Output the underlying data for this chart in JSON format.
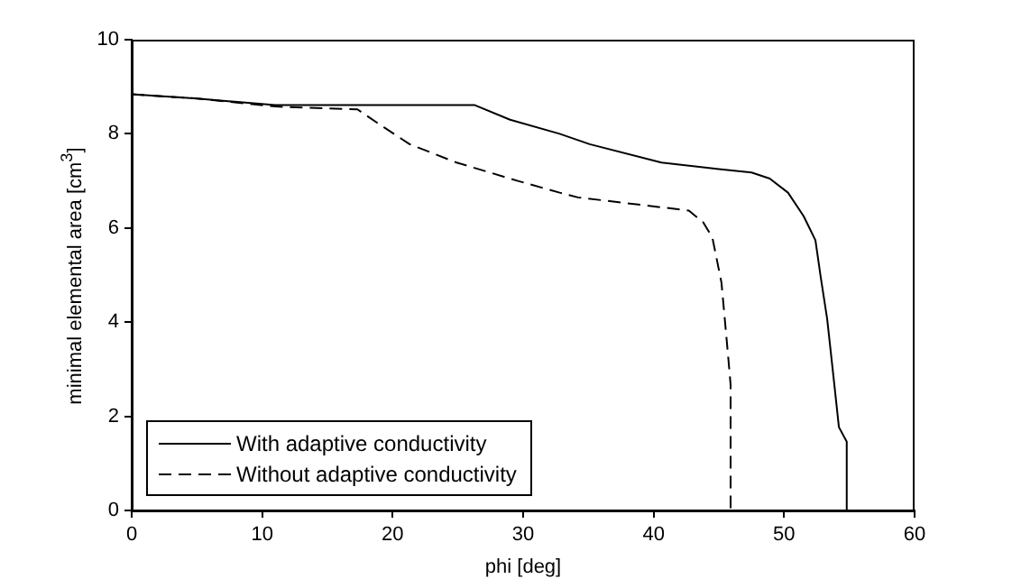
{
  "chart_data": {
    "type": "line",
    "xlabel": "phi [deg]",
    "ylabel": "minimal elemental area [cm$^{3}$]",
    "xlim": [
      0,
      60
    ],
    "xticks": [
      0,
      10,
      20,
      30,
      40,
      50,
      60
    ],
    "ylim": [
      0,
      10
    ],
    "yticks": [
      0,
      2,
      4,
      6,
      8,
      10
    ],
    "grid": false,
    "legend": "bottom left",
    "marker": "none",
    "series": [
      {
        "name": "With adaptive conductivity",
        "color": "#000000",
        "line_style": "solid",
        "x": [
          0,
          5,
          11,
          26.3,
          29,
          32.8,
          35.1,
          40.6,
          45,
          47.5,
          48.9,
          50.3,
          51.5,
          52.4,
          52.8,
          53.3,
          53.8,
          54.2,
          54.8,
          54.8
        ],
        "values": [
          8.84,
          8.75,
          8.61,
          8.61,
          8.3,
          8.0,
          7.78,
          7.39,
          7.25,
          7.18,
          7.05,
          6.75,
          6.25,
          5.74,
          4.97,
          4.07,
          2.8,
          1.77,
          1.46,
          0
        ]
      },
      {
        "name": "Without adaptive conductivity",
        "color": "#000000",
        "line_style": "dashed",
        "x": [
          0,
          5,
          11,
          17.3,
          19,
          21.3,
          24.9,
          29.6,
          32.8,
          34.2,
          40.6,
          42.7,
          43.8,
          44.5,
          45.2,
          45.7,
          45.9,
          45.9
        ],
        "values": [
          8.84,
          8.75,
          8.58,
          8.52,
          8.2,
          7.78,
          7.39,
          7.0,
          6.75,
          6.65,
          6.44,
          6.37,
          6.12,
          5.8,
          4.84,
          3.31,
          2.67,
          0
        ]
      }
    ]
  }
}
